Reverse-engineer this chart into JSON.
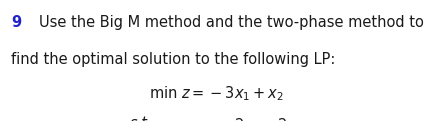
{
  "background_color": "#ffffff",
  "number": "9",
  "number_color": "#2222cc",
  "intro_line1": "Use the Big M method and the two-phase method to",
  "intro_line2": "find the optimal solution to the following LP:",
  "text_color": "#1a1a1a",
  "font_size": 10.5,
  "math_font_size": 10.5,
  "fig_width": 4.33,
  "fig_height": 1.21,
  "dpi": 100
}
